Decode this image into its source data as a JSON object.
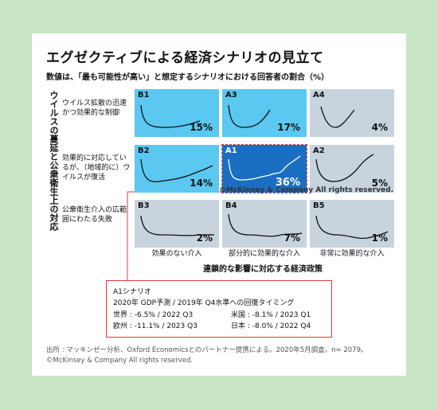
{
  "title": "エグゼクティブによる経済シナリオの見立て",
  "subtitle": "数値は、「最も可能性が高い」と想定するシナリオにおける回答者の割合（%）",
  "vertical_axis_label": "ウイルスの蔓延と公衆衛生上の対応",
  "row_labels": [
    "ウイルス拡散の迅速かつ効果的な制御",
    "効果的に対応しているが、（地域的に）ウイルスが復活",
    "公衆衛生介入の広範囲にわたる失敗"
  ],
  "column_labels": [
    "効果のない介入",
    "部分的に効果的な介入",
    "非常に効果的な介入"
  ],
  "x_axis_label": "連鎖的な影響に対応する経済政策",
  "inline_copyright": "©McKinsey & Company All rights reserved.",
  "colors": {
    "light_blue": "#5ac8f0",
    "dark_blue": "#1b6fc2",
    "grey": "#c7d3dd",
    "red": "#e23a3a",
    "background": "#c8e6c4"
  },
  "chart_data": {
    "type": "heatmap",
    "cells": [
      {
        "id": "B1",
        "value": "15%",
        "shade": "light_blue"
      },
      {
        "id": "A3",
        "value": "17%",
        "shade": "light_blue"
      },
      {
        "id": "A4",
        "value": "4%",
        "shade": "grey"
      },
      {
        "id": "B2",
        "value": "14%",
        "shade": "light_blue"
      },
      {
        "id": "A1",
        "value": "36%",
        "shade": "dark_blue"
      },
      {
        "id": "A2",
        "value": "5%",
        "shade": "grey"
      },
      {
        "id": "B3",
        "value": "2%",
        "shade": "grey"
      },
      {
        "id": "B4",
        "value": "7%",
        "shade": "grey"
      },
      {
        "id": "B5",
        "value": "1%",
        "shade": "grey"
      }
    ]
  },
  "scenario_box": {
    "title": "A1シナリオ",
    "subtitle": "2020年 GDP予測 / 2019年 Q4水準への回復タイミング",
    "world": "世界 : -6.5% / 2022 Q3",
    "us": "米国 : -8.1% / 2023 Q1",
    "eu": "欧州 : -11.1% / 2023 Q3",
    "japan": "日本 : -8.0% / 2022 Q4"
  },
  "source": "出所 : マッキンゼー分析、Oxford Economicsとのパートナー提携による。2020年5月調査。n= 2079。",
  "copyright": "©McKinsey & Company All rights reserved."
}
